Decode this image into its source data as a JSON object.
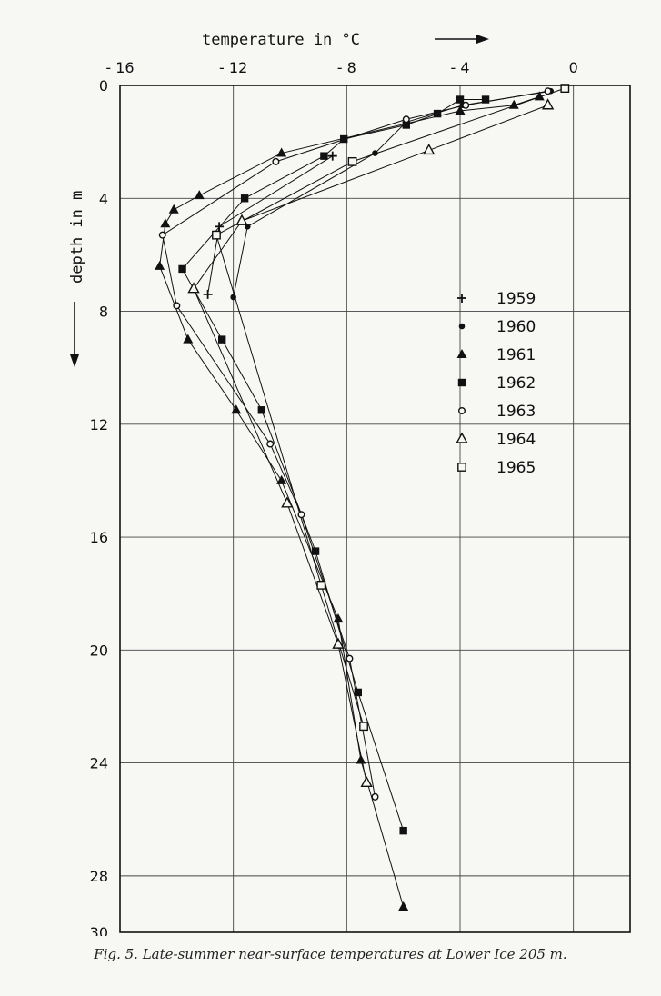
{
  "chart_data": {
    "type": "scatter",
    "x_axis_label": "temperature   in   °C",
    "y_axis_label": "depth   in   m",
    "x_ticks": [
      -16,
      -12,
      -8,
      -4,
      0
    ],
    "y_ticks": [
      0,
      4,
      8,
      12,
      16,
      20,
      24,
      28,
      30
    ],
    "xlim": [
      -16,
      2
    ],
    "ylim": [
      0,
      30
    ],
    "y_inverted": true,
    "grid": true,
    "legend_position": "center-right",
    "series": [
      {
        "name": "1959",
        "marker": "plus",
        "points": [
          [
            -8.5,
            2.5
          ],
          [
            -12.5,
            5
          ],
          [
            -12.9,
            7.4
          ]
        ]
      },
      {
        "name": "1960",
        "marker": "dot",
        "points": [
          [
            -0.8,
            0.2
          ],
          [
            -3.9,
            0.7
          ],
          [
            -5.9,
            1.3
          ],
          [
            -7,
            2.4
          ],
          [
            -11.5,
            5
          ],
          [
            -12,
            7.5
          ]
        ]
      },
      {
        "name": "1961",
        "marker": "filled-triangle",
        "points": [
          [
            -1.2,
            0.4
          ],
          [
            -2.1,
            0.7
          ],
          [
            -4,
            0.9
          ],
          [
            -10.3,
            2.4
          ],
          [
            -13.2,
            3.9
          ],
          [
            -14.1,
            4.4
          ],
          [
            -14.4,
            4.9
          ],
          [
            -14.6,
            6.4
          ],
          [
            -13.6,
            9
          ],
          [
            -11.9,
            11.5
          ],
          [
            -10.3,
            14
          ],
          [
            -8.3,
            18.9
          ],
          [
            -7.5,
            23.9
          ],
          [
            -6,
            29.1
          ]
        ]
      },
      {
        "name": "1962",
        "marker": "filled-square",
        "points": [
          [
            -3.1,
            0.5
          ],
          [
            -4,
            0.5
          ],
          [
            -4.8,
            1
          ],
          [
            -5.9,
            1.4
          ],
          [
            -8.1,
            1.9
          ],
          [
            -8.8,
            2.5
          ],
          [
            -11.6,
            4
          ],
          [
            -13.8,
            6.5
          ],
          [
            -12.4,
            9
          ],
          [
            -11,
            11.5
          ],
          [
            -9.1,
            16.5
          ],
          [
            -7.6,
            21.5
          ],
          [
            -6,
            26.4
          ]
        ]
      },
      {
        "name": "1963",
        "marker": "open-circle",
        "points": [
          [
            -0.9,
            0.2
          ],
          [
            -3.8,
            0.7
          ],
          [
            -5.9,
            1.2
          ],
          [
            -10.5,
            2.7
          ],
          [
            -14.5,
            5.3
          ],
          [
            -14,
            7.8
          ],
          [
            -10.7,
            12.7
          ],
          [
            -9.6,
            15.2
          ],
          [
            -7.9,
            20.3
          ],
          [
            -7,
            25.2
          ]
        ]
      },
      {
        "name": "1964",
        "marker": "open-triangle",
        "points": [
          [
            -0.9,
            0.7
          ],
          [
            -5.1,
            2.3
          ],
          [
            -11.7,
            4.8
          ],
          [
            -13.4,
            7.2
          ],
          [
            -10.1,
            14.8
          ],
          [
            -8.3,
            19.8
          ],
          [
            -7.3,
            24.7
          ]
        ]
      },
      {
        "name": "1965",
        "marker": "open-square",
        "points": [
          [
            -0.3,
            0.1
          ],
          [
            -7.8,
            2.7
          ],
          [
            -12.6,
            5.3
          ],
          [
            -8.9,
            17.7
          ],
          [
            -7.4,
            22.7
          ]
        ]
      }
    ]
  },
  "caption": "Fig. 5.  Late-summer near-surface temperatures at Lower Ice 205 m."
}
